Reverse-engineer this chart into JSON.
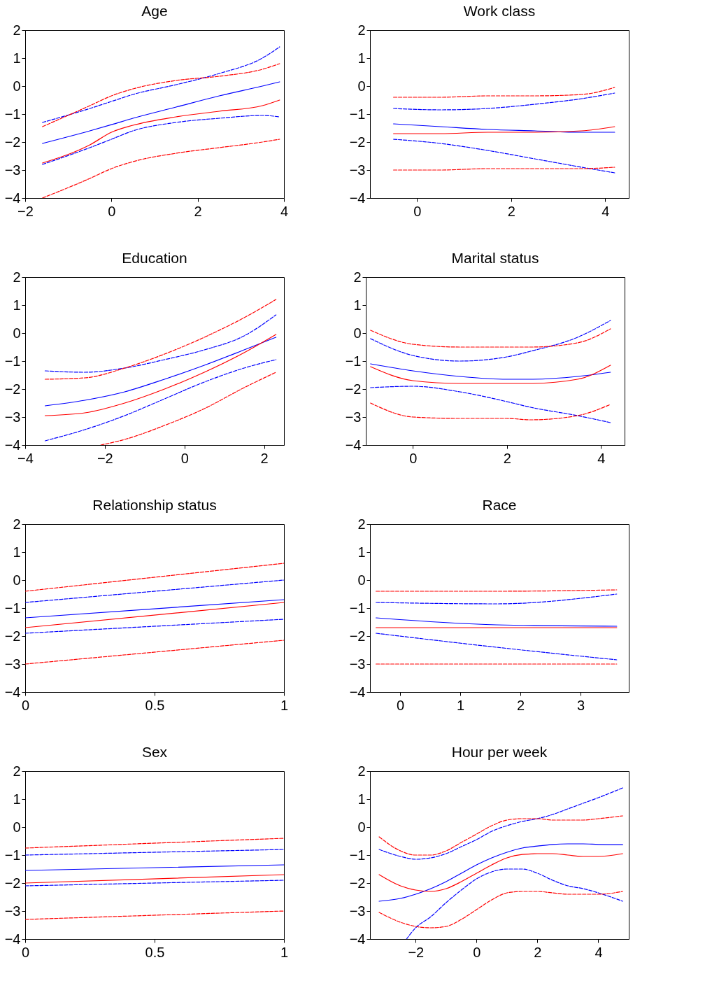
{
  "chart_data": [
    {
      "type": "line",
      "title": "Age",
      "xlim": [
        -2,
        4
      ],
      "xticks": [
        -2,
        0,
        2,
        4
      ],
      "ylim": [
        -4,
        2
      ],
      "yticks": [
        -4,
        -3,
        -2,
        -1,
        0,
        1,
        2
      ],
      "x": [
        -1.6,
        -0.5,
        0,
        0.5,
        1.5,
        2.5,
        3.5,
        3.9
      ],
      "series": [
        {
          "color": "#0000ff",
          "line_style": "solid",
          "values": [
            -2.05,
            -1.6,
            -1.38,
            -1.15,
            -0.75,
            -0.35,
            0.0,
            0.15
          ]
        },
        {
          "color": "#ff0000",
          "line_style": "solid",
          "values": [
            -2.75,
            -2.1,
            -1.65,
            -1.4,
            -1.1,
            -0.9,
            -0.7,
            -0.5
          ]
        },
        {
          "color": "#0000ff",
          "line_style": "dashed",
          "values": [
            -1.3,
            -0.8,
            -0.55,
            -0.3,
            0.05,
            0.45,
            1.0,
            1.4
          ]
        },
        {
          "color": "#0000ff",
          "line_style": "dashed",
          "values": [
            -2.8,
            -2.2,
            -1.9,
            -1.6,
            -1.3,
            -1.15,
            -1.05,
            -1.1
          ]
        },
        {
          "color": "#ff0000",
          "line_style": "dashed",
          "values": [
            -1.45,
            -0.7,
            -0.35,
            -0.1,
            0.2,
            0.35,
            0.6,
            0.8
          ]
        },
        {
          "color": "#ff0000",
          "line_style": "dashed",
          "values": [
            -4.0,
            -3.3,
            -2.95,
            -2.7,
            -2.4,
            -2.2,
            -2.0,
            -1.9
          ]
        }
      ]
    },
    {
      "type": "line",
      "title": "Work class",
      "xlim": [
        -1,
        4.5
      ],
      "xticks": [
        0,
        2,
        4
      ],
      "ylim": [
        -4,
        2
      ],
      "yticks": [
        -4,
        -3,
        -2,
        -1,
        0,
        1,
        2
      ],
      "x": [
        -0.5,
        0.5,
        1.5,
        2.5,
        3.5,
        4.2
      ],
      "series": [
        {
          "color": "#0000ff",
          "line_style": "solid",
          "values": [
            -1.35,
            -1.45,
            -1.55,
            -1.6,
            -1.65,
            -1.65
          ]
        },
        {
          "color": "#ff0000",
          "line_style": "solid",
          "values": [
            -1.7,
            -1.7,
            -1.65,
            -1.65,
            -1.6,
            -1.45
          ]
        },
        {
          "color": "#0000ff",
          "line_style": "dashed",
          "values": [
            -0.8,
            -0.85,
            -0.8,
            -0.65,
            -0.45,
            -0.25
          ]
        },
        {
          "color": "#0000ff",
          "line_style": "dashed",
          "values": [
            -1.9,
            -2.05,
            -2.3,
            -2.6,
            -2.9,
            -3.1
          ]
        },
        {
          "color": "#ff0000",
          "line_style": "dashed",
          "values": [
            -0.4,
            -0.4,
            -0.35,
            -0.35,
            -0.3,
            -0.05
          ]
        },
        {
          "color": "#ff0000",
          "line_style": "dashed",
          "values": [
            -3.0,
            -3.0,
            -2.95,
            -2.95,
            -2.95,
            -2.9
          ]
        }
      ]
    },
    {
      "type": "line",
      "title": "Education",
      "xlim": [
        -4,
        2.5
      ],
      "xticks": [
        -4,
        -2,
        0,
        2
      ],
      "ylim": [
        -4,
        2
      ],
      "yticks": [
        -4,
        -3,
        -2,
        -1,
        0,
        1,
        2
      ],
      "x": [
        -3.5,
        -2.5,
        -1.5,
        -0.5,
        0.5,
        1.5,
        2.3
      ],
      "series": [
        {
          "color": "#0000ff",
          "line_style": "solid",
          "values": [
            -2.6,
            -2.4,
            -2.1,
            -1.65,
            -1.15,
            -0.6,
            -0.15
          ]
        },
        {
          "color": "#ff0000",
          "line_style": "solid",
          "values": [
            -2.95,
            -2.85,
            -2.5,
            -2.0,
            -1.4,
            -0.7,
            -0.05
          ]
        },
        {
          "color": "#0000ff",
          "line_style": "dashed",
          "values": [
            -1.35,
            -1.4,
            -1.25,
            -0.95,
            -0.6,
            -0.1,
            0.65
          ]
        },
        {
          "color": "#0000ff",
          "line_style": "dashed",
          "values": [
            -3.85,
            -3.45,
            -2.95,
            -2.35,
            -1.75,
            -1.25,
            -0.95
          ]
        },
        {
          "color": "#ff0000",
          "line_style": "dashed",
          "values": [
            -1.65,
            -1.6,
            -1.25,
            -0.75,
            -0.15,
            0.55,
            1.2
          ]
        },
        {
          "color": "#ff0000",
          "line_style": "dashed",
          "x": [
            -2.1,
            -1.5,
            -0.5,
            0.5,
            1.5,
            2.3
          ],
          "values": [
            -4.0,
            -3.8,
            -3.3,
            -2.7,
            -1.95,
            -1.4
          ]
        }
      ]
    },
    {
      "type": "line",
      "title": "Marital status",
      "xlim": [
        -1,
        4.5
      ],
      "xticks": [
        0,
        2,
        4
      ],
      "ylim": [
        -4,
        2
      ],
      "yticks": [
        -4,
        -3,
        -2,
        -1,
        0,
        1,
        2
      ],
      "x": [
        -0.9,
        0,
        1,
        2,
        2.5,
        3.5,
        4.2
      ],
      "series": [
        {
          "color": "#0000ff",
          "line_style": "solid",
          "values": [
            -1.1,
            -1.35,
            -1.55,
            -1.65,
            -1.65,
            -1.55,
            -1.4
          ]
        },
        {
          "color": "#ff0000",
          "line_style": "solid",
          "values": [
            -1.2,
            -1.7,
            -1.8,
            -1.8,
            -1.8,
            -1.65,
            -1.15
          ]
        },
        {
          "color": "#0000ff",
          "line_style": "dashed",
          "values": [
            -0.2,
            -0.8,
            -1.0,
            -0.85,
            -0.65,
            -0.15,
            0.45
          ]
        },
        {
          "color": "#0000ff",
          "line_style": "dashed",
          "values": [
            -1.95,
            -1.9,
            -2.1,
            -2.45,
            -2.65,
            -2.95,
            -3.2
          ]
        },
        {
          "color": "#ff0000",
          "line_style": "dashed",
          "values": [
            0.1,
            -0.4,
            -0.5,
            -0.5,
            -0.5,
            -0.35,
            0.15
          ]
        },
        {
          "color": "#ff0000",
          "line_style": "dashed",
          "values": [
            -2.5,
            -3.0,
            -3.05,
            -3.05,
            -3.1,
            -2.95,
            -2.55
          ]
        }
      ]
    },
    {
      "type": "line",
      "title": "Relationship status",
      "xlim": [
        0,
        1
      ],
      "xticks": [
        0,
        0.5,
        1
      ],
      "ylim": [
        -4,
        2
      ],
      "yticks": [
        -4,
        -3,
        -2,
        -1,
        0,
        1,
        2
      ],
      "x": [
        0,
        1
      ],
      "series": [
        {
          "color": "#0000ff",
          "line_style": "solid",
          "values": [
            -1.35,
            -0.7
          ]
        },
        {
          "color": "#ff0000",
          "line_style": "solid",
          "values": [
            -1.7,
            -0.8
          ]
        },
        {
          "color": "#0000ff",
          "line_style": "dashed",
          "values": [
            -0.8,
            0.0
          ]
        },
        {
          "color": "#0000ff",
          "line_style": "dashed",
          "values": [
            -1.9,
            -1.4
          ]
        },
        {
          "color": "#ff0000",
          "line_style": "dashed",
          "values": [
            -0.4,
            0.6
          ]
        },
        {
          "color": "#ff0000",
          "line_style": "dashed",
          "values": [
            -3.0,
            -2.15
          ]
        }
      ]
    },
    {
      "type": "line",
      "title": "Race",
      "xlim": [
        -0.5,
        3.8
      ],
      "xticks": [
        0,
        1,
        2,
        3
      ],
      "ylim": [
        -4,
        2
      ],
      "yticks": [
        -4,
        -3,
        -2,
        -1,
        0,
        1,
        2
      ],
      "x": [
        -0.4,
        1.6,
        3.6
      ],
      "series": [
        {
          "color": "#0000ff",
          "line_style": "solid",
          "values": [
            -1.35,
            -1.6,
            -1.65
          ]
        },
        {
          "color": "#ff0000",
          "line_style": "solid",
          "values": [
            -1.7,
            -1.7,
            -1.7
          ]
        },
        {
          "color": "#0000ff",
          "line_style": "dashed",
          "values": [
            -0.8,
            -0.85,
            -0.5
          ]
        },
        {
          "color": "#0000ff",
          "line_style": "dashed",
          "values": [
            -1.9,
            -2.4,
            -2.85
          ]
        },
        {
          "color": "#ff0000",
          "line_style": "dashed",
          "values": [
            -0.4,
            -0.4,
            -0.35
          ]
        },
        {
          "color": "#ff0000",
          "line_style": "dashed",
          "values": [
            -3.0,
            -3.0,
            -3.0
          ]
        }
      ]
    },
    {
      "type": "line",
      "title": "Sex",
      "xlim": [
        0,
        1
      ],
      "xticks": [
        0,
        0.5,
        1
      ],
      "ylim": [
        -4,
        2
      ],
      "yticks": [
        -4,
        -3,
        -2,
        -1,
        0,
        1,
        2
      ],
      "x": [
        0,
        1
      ],
      "series": [
        {
          "color": "#0000ff",
          "line_style": "solid",
          "values": [
            -1.55,
            -1.35
          ]
        },
        {
          "color": "#ff0000",
          "line_style": "solid",
          "values": [
            -2.0,
            -1.7
          ]
        },
        {
          "color": "#0000ff",
          "line_style": "dashed",
          "values": [
            -1.0,
            -0.8
          ]
        },
        {
          "color": "#0000ff",
          "line_style": "dashed",
          "values": [
            -2.1,
            -1.9
          ]
        },
        {
          "color": "#ff0000",
          "line_style": "dashed",
          "values": [
            -0.75,
            -0.4
          ]
        },
        {
          "color": "#ff0000",
          "line_style": "dashed",
          "values": [
            -3.3,
            -3.0
          ]
        }
      ]
    },
    {
      "type": "line",
      "title": "Hour per week",
      "xlim": [
        -3.5,
        5
      ],
      "xticks": [
        -2,
        0,
        2,
        4
      ],
      "ylim": [
        -4,
        2
      ],
      "yticks": [
        -4,
        -3,
        -2,
        -1,
        0,
        1,
        2
      ],
      "x": [
        -3.2,
        -2.5,
        -2,
        -1.5,
        -1,
        -0.5,
        0,
        0.5,
        1,
        1.5,
        2,
        2.5,
        3,
        3.5,
        4,
        4.8
      ],
      "series": [
        {
          "color": "#0000ff",
          "line_style": "solid",
          "values": [
            -2.65,
            -2.55,
            -2.4,
            -2.2,
            -1.95,
            -1.65,
            -1.35,
            -1.1,
            -0.9,
            -0.75,
            -0.68,
            -0.62,
            -0.6,
            -0.6,
            -0.62,
            -0.63
          ]
        },
        {
          "color": "#ff0000",
          "line_style": "solid",
          "values": [
            -1.7,
            -2.1,
            -2.25,
            -2.3,
            -2.2,
            -1.95,
            -1.65,
            -1.35,
            -1.1,
            -0.98,
            -0.95,
            -0.95,
            -1.0,
            -1.05,
            -1.05,
            -0.95
          ]
        },
        {
          "color": "#0000ff",
          "line_style": "dashed",
          "values": [
            -0.8,
            -1.05,
            -1.15,
            -1.1,
            -0.95,
            -0.7,
            -0.45,
            -0.15,
            0.05,
            0.2,
            0.3,
            0.45,
            0.65,
            0.85,
            1.05,
            1.4
          ]
        },
        {
          "color": "#0000ff",
          "line_style": "dashed",
          "x": [
            -2.3,
            -2,
            -1.5,
            -1,
            -0.5,
            0,
            0.5,
            1,
            1.5,
            2,
            2.5,
            3,
            3.5,
            4,
            4.8
          ],
          "values": [
            -4.0,
            -3.6,
            -3.2,
            -2.7,
            -2.25,
            -1.85,
            -1.6,
            -1.5,
            -1.5,
            -1.65,
            -1.9,
            -2.1,
            -2.2,
            -2.35,
            -2.65
          ]
        },
        {
          "color": "#ff0000",
          "line_style": "dashed",
          "values": [
            -0.35,
            -0.85,
            -1.0,
            -1.0,
            -0.85,
            -0.55,
            -0.25,
            0.05,
            0.25,
            0.3,
            0.3,
            0.25,
            0.25,
            0.25,
            0.3,
            0.4
          ]
        },
        {
          "color": "#ff0000",
          "line_style": "dashed",
          "values": [
            -3.05,
            -3.4,
            -3.55,
            -3.6,
            -3.55,
            -3.3,
            -2.95,
            -2.6,
            -2.35,
            -2.3,
            -2.3,
            -2.35,
            -2.4,
            -2.4,
            -2.4,
            -2.3
          ]
        }
      ]
    }
  ]
}
